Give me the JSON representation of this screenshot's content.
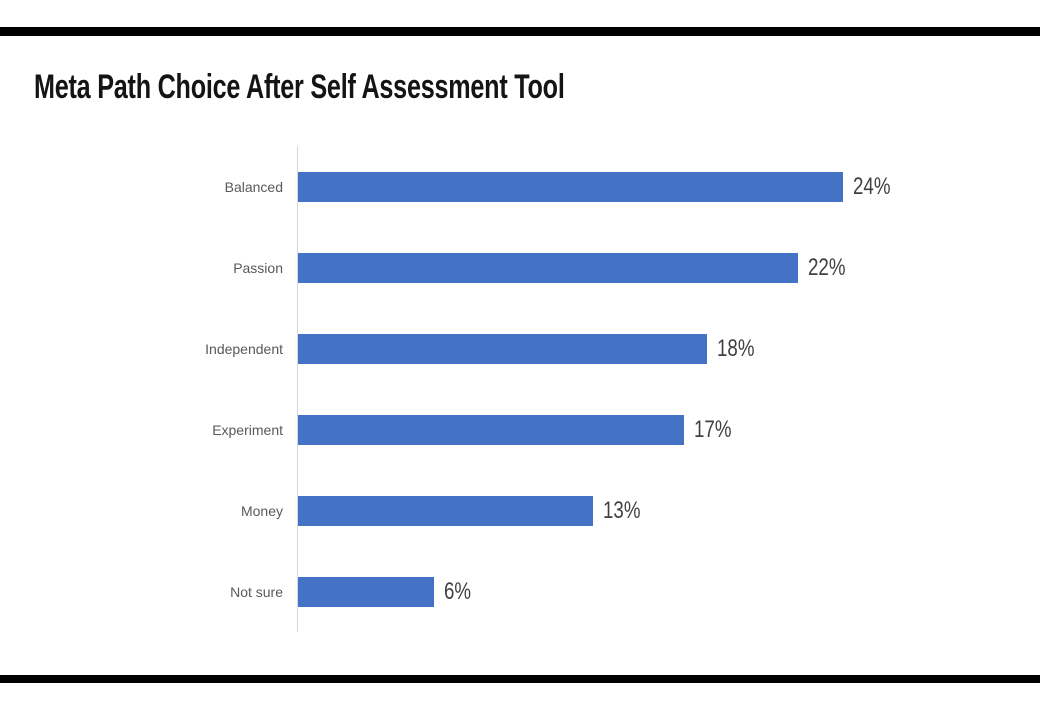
{
  "page": {
    "background_color": "#ffffff",
    "top_band_color": "#000000",
    "bottom_band_color": "#000000"
  },
  "title": "Meta Path Choice After Self Assessment Tool",
  "chart_data": {
    "type": "bar",
    "orientation": "horizontal",
    "title": "Meta Path Choice After Self Assessment Tool",
    "categories": [
      "Balanced",
      "Passion",
      "Independent",
      "Experiment",
      "Money",
      "Not sure"
    ],
    "values": [
      24,
      22,
      18,
      17,
      13,
      6
    ],
    "data_labels": [
      "24%",
      "22%",
      "18%",
      "17%",
      "13%",
      "6%"
    ],
    "xlabel": "",
    "ylabel": "",
    "xlim": [
      0,
      24
    ],
    "grid": false,
    "legend": false,
    "bar_color": "#4472C4",
    "category_label_color": "#595959",
    "value_label_color": "#404040",
    "axis_line_color": "#d6d6d6"
  }
}
